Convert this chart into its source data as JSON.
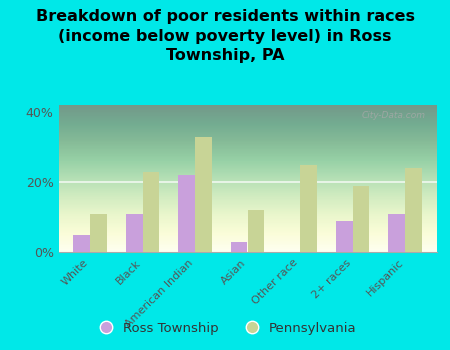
{
  "title": "Breakdown of poor residents within races\n(income below poverty level) in Ross\nTownship, PA",
  "categories": [
    "White",
    "Black",
    "American Indian",
    "Asian",
    "Other race",
    "2+ races",
    "Hispanic"
  ],
  "ross_township": [
    5,
    11,
    22,
    3,
    0,
    9,
    11
  ],
  "pennsylvania": [
    11,
    23,
    33,
    12,
    25,
    19,
    24
  ],
  "ross_color": "#c9a0dc",
  "pa_color": "#c8d496",
  "background_color": "#00e8e8",
  "yticks": [
    0,
    20,
    40
  ],
  "ylim": [
    0,
    42
  ],
  "watermark": "City-Data.com",
  "legend_labels": [
    "Ross Township",
    "Pennsylvania"
  ],
  "title_fontsize": 11.5,
  "tick_fontsize": 8,
  "legend_fontsize": 9.5,
  "bar_width": 0.32
}
